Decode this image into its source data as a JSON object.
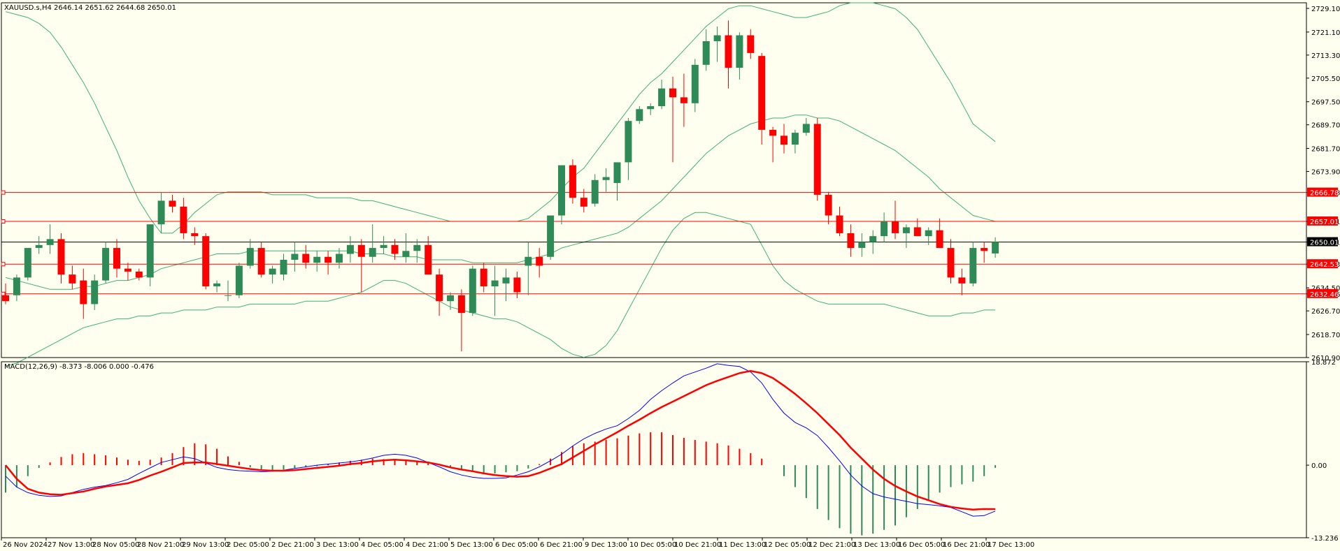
{
  "header": {
    "symbol_info": "XAUUSD.s,H4  2646.14 2651.62 2644.68 2650.01",
    "macd_info": "MACD(12,26,9) -8.373 -8.006 0.000 -0.476"
  },
  "colors": {
    "background": "#fffff0",
    "bull": "#2e8b57",
    "bear": "#ff0000",
    "bands": "#3cb371",
    "level_line": "#ff0000",
    "current_line": "#000000",
    "macd_main": "#0000ff",
    "macd_signal": "#ff0000"
  },
  "chart_data": [
    {
      "type": "candlestick",
      "symbol": "XAUUSD.s",
      "timeframe": "H4",
      "ylim": [
        2610.9,
        2731.0
      ],
      "y_ticks": [
        "2729.10",
        "2721.10",
        "2713.30",
        "2705.50",
        "2697.50",
        "2689.70",
        "2681.70",
        "2673.90",
        "2666.78",
        "2657.01",
        "2650.01",
        "2642.53",
        "2634.50",
        "2632.46",
        "2626.70",
        "2618.70",
        "2610.90"
      ],
      "horizontal_levels": [
        {
          "label": "2666.78",
          "value": 2666.78
        },
        {
          "label": "2657.01",
          "value": 2657.01
        },
        {
          "label": "2642.53",
          "value": 2642.53
        },
        {
          "label": "2632.46",
          "value": 2632.46
        }
      ],
      "current_price": {
        "label": "2650.01",
        "value": 2650.01
      },
      "x_labels": [
        "26 Nov 2024",
        "27 Nov 13:00",
        "28 Nov 05:00",
        "28 Nov 21:00",
        "29 Nov 13:00",
        "2 Dec 05:00",
        "2 Dec 21:00",
        "3 Dec 13:00",
        "4 Dec 05:00",
        "4 Dec 21:00",
        "5 Dec 13:00",
        "6 Dec 05:00",
        "6 Dec 21:00",
        "9 Dec 13:00",
        "10 Dec 05:00",
        "10 Dec 21:00",
        "11 Dec 13:00",
        "12 Dec 05:00",
        "12 Dec 21:00",
        "13 Dec 13:00",
        "16 Dec 05:00",
        "16 Dec 21:00",
        "17 Dec 13:00"
      ],
      "candles": [
        {
          "o": 2632,
          "h": 2636,
          "l": 2629,
          "c": 2630
        },
        {
          "o": 2632,
          "h": 2639,
          "l": 2630,
          "c": 2638
        },
        {
          "o": 2638,
          "h": 2648,
          "l": 2637,
          "c": 2648
        },
        {
          "o": 2648,
          "h": 2652,
          "l": 2646,
          "c": 2649
        },
        {
          "o": 2649,
          "h": 2656,
          "l": 2646,
          "c": 2651
        },
        {
          "o": 2651,
          "h": 2653,
          "l": 2636,
          "c": 2639
        },
        {
          "o": 2639,
          "h": 2642,
          "l": 2634,
          "c": 2636
        },
        {
          "o": 2637,
          "h": 2641,
          "l": 2624,
          "c": 2629
        },
        {
          "o": 2629,
          "h": 2639,
          "l": 2627,
          "c": 2637
        },
        {
          "o": 2637,
          "h": 2650,
          "l": 2636,
          "c": 2648
        },
        {
          "o": 2648,
          "h": 2651,
          "l": 2638,
          "c": 2641
        },
        {
          "o": 2641,
          "h": 2643,
          "l": 2637,
          "c": 2640
        },
        {
          "o": 2640,
          "h": 2641,
          "l": 2637,
          "c": 2638
        },
        {
          "o": 2638,
          "h": 2656,
          "l": 2635,
          "c": 2656
        },
        {
          "o": 2656,
          "h": 2667,
          "l": 2653,
          "c": 2664
        },
        {
          "o": 2664,
          "h": 2666,
          "l": 2660,
          "c": 2662
        },
        {
          "o": 2662,
          "h": 2665,
          "l": 2651,
          "c": 2653
        },
        {
          "o": 2653,
          "h": 2655,
          "l": 2649,
          "c": 2652
        },
        {
          "o": 2652,
          "h": 2653,
          "l": 2634,
          "c": 2635
        },
        {
          "o": 2635,
          "h": 2637,
          "l": 2633,
          "c": 2636
        },
        {
          "o": 2632,
          "h": 2637,
          "l": 2630,
          "c": 2632
        },
        {
          "o": 2632,
          "h": 2643,
          "l": 2631,
          "c": 2642
        },
        {
          "o": 2642,
          "h": 2651,
          "l": 2641,
          "c": 2648
        },
        {
          "o": 2648,
          "h": 2650,
          "l": 2638,
          "c": 2639
        },
        {
          "o": 2639,
          "h": 2642,
          "l": 2636,
          "c": 2641
        },
        {
          "o": 2639,
          "h": 2646,
          "l": 2637,
          "c": 2644
        },
        {
          "o": 2644,
          "h": 2650,
          "l": 2640,
          "c": 2646
        },
        {
          "o": 2646,
          "h": 2649,
          "l": 2641,
          "c": 2643
        },
        {
          "o": 2643,
          "h": 2647,
          "l": 2640,
          "c": 2645
        },
        {
          "o": 2645,
          "h": 2647,
          "l": 2639,
          "c": 2643
        },
        {
          "o": 2643,
          "h": 2648,
          "l": 2641,
          "c": 2646
        },
        {
          "o": 2646,
          "h": 2652,
          "l": 2643,
          "c": 2649
        },
        {
          "o": 2649,
          "h": 2651,
          "l": 2633,
          "c": 2645
        },
        {
          "o": 2645,
          "h": 2656,
          "l": 2643,
          "c": 2648
        },
        {
          "o": 2648,
          "h": 2652,
          "l": 2646,
          "c": 2649
        },
        {
          "o": 2649,
          "h": 2651,
          "l": 2644,
          "c": 2646
        },
        {
          "o": 2645,
          "h": 2653,
          "l": 2643,
          "c": 2647
        },
        {
          "o": 2647,
          "h": 2651,
          "l": 2643,
          "c": 2649
        },
        {
          "o": 2649,
          "h": 2652,
          "l": 2640,
          "c": 2639
        },
        {
          "o": 2639,
          "h": 2641,
          "l": 2625,
          "c": 2630
        },
        {
          "o": 2630,
          "h": 2633,
          "l": 2627,
          "c": 2632
        },
        {
          "o": 2632,
          "h": 2634,
          "l": 2613,
          "c": 2626
        },
        {
          "o": 2626,
          "h": 2642,
          "l": 2625,
          "c": 2641
        },
        {
          "o": 2641,
          "h": 2643,
          "l": 2633,
          "c": 2635
        },
        {
          "o": 2635,
          "h": 2642,
          "l": 2625,
          "c": 2637
        },
        {
          "o": 2636,
          "h": 2641,
          "l": 2630,
          "c": 2638
        },
        {
          "o": 2638,
          "h": 2640,
          "l": 2631,
          "c": 2633
        },
        {
          "o": 2642,
          "h": 2650,
          "l": 2632,
          "c": 2645
        },
        {
          "o": 2645,
          "h": 2648,
          "l": 2638,
          "c": 2642
        },
        {
          "o": 2645,
          "h": 2659,
          "l": 2644,
          "c": 2659
        },
        {
          "o": 2659,
          "h": 2676,
          "l": 2656,
          "c": 2676
        },
        {
          "o": 2676,
          "h": 2678,
          "l": 2663,
          "c": 2665
        },
        {
          "o": 2665,
          "h": 2668,
          "l": 2660,
          "c": 2662
        },
        {
          "o": 2663,
          "h": 2673,
          "l": 2662,
          "c": 2671
        },
        {
          "o": 2671,
          "h": 2675,
          "l": 2667,
          "c": 2672
        },
        {
          "o": 2670,
          "h": 2676,
          "l": 2664,
          "c": 2677
        },
        {
          "o": 2677,
          "h": 2692,
          "l": 2671,
          "c": 2691
        },
        {
          "o": 2691,
          "h": 2696,
          "l": 2690,
          "c": 2695
        },
        {
          "o": 2695,
          "h": 2697,
          "l": 2693,
          "c": 2696
        },
        {
          "o": 2696,
          "h": 2705,
          "l": 2695,
          "c": 2702
        },
        {
          "o": 2702,
          "h": 2706,
          "l": 2677,
          "c": 2699
        },
        {
          "o": 2699,
          "h": 2707,
          "l": 2689,
          "c": 2697
        },
        {
          "o": 2697,
          "h": 2712,
          "l": 2694,
          "c": 2710
        },
        {
          "o": 2710,
          "h": 2722,
          "l": 2708,
          "c": 2718
        },
        {
          "o": 2718,
          "h": 2723,
          "l": 2711,
          "c": 2720
        },
        {
          "o": 2720,
          "h": 2725,
          "l": 2702,
          "c": 2709
        },
        {
          "o": 2709,
          "h": 2721,
          "l": 2705,
          "c": 2720
        },
        {
          "o": 2720,
          "h": 2722,
          "l": 2712,
          "c": 2714
        },
        {
          "o": 2713,
          "h": 2714,
          "l": 2683,
          "c": 2688
        },
        {
          "o": 2688,
          "h": 2689,
          "l": 2677,
          "c": 2686
        },
        {
          "o": 2686,
          "h": 2690,
          "l": 2680,
          "c": 2683
        },
        {
          "o": 2683,
          "h": 2688,
          "l": 2680,
          "c": 2687
        },
        {
          "o": 2687,
          "h": 2692,
          "l": 2686,
          "c": 2690
        },
        {
          "o": 2690,
          "h": 2692,
          "l": 2664,
          "c": 2666
        },
        {
          "o": 2666,
          "h": 2667,
          "l": 2656,
          "c": 2659
        },
        {
          "o": 2659,
          "h": 2662,
          "l": 2652,
          "c": 2653
        },
        {
          "o": 2653,
          "h": 2656,
          "l": 2645,
          "c": 2648
        },
        {
          "o": 2648,
          "h": 2653,
          "l": 2645,
          "c": 2650
        },
        {
          "o": 2650,
          "h": 2654,
          "l": 2646,
          "c": 2652
        },
        {
          "o": 2652,
          "h": 2660,
          "l": 2650,
          "c": 2657
        },
        {
          "o": 2657,
          "h": 2664,
          "l": 2651,
          "c": 2653
        },
        {
          "o": 2653,
          "h": 2656,
          "l": 2648,
          "c": 2655
        },
        {
          "o": 2655,
          "h": 2658,
          "l": 2652,
          "c": 2652
        },
        {
          "o": 2652,
          "h": 2655,
          "l": 2649,
          "c": 2654
        },
        {
          "o": 2654,
          "h": 2658,
          "l": 2648,
          "c": 2648
        },
        {
          "o": 2648,
          "h": 2651,
          "l": 2636,
          "c": 2638
        },
        {
          "o": 2638,
          "h": 2641,
          "l": 2632,
          "c": 2636
        },
        {
          "o": 2636,
          "h": 2650,
          "l": 2635,
          "c": 2648
        },
        {
          "o": 2648,
          "h": 2650,
          "l": 2643,
          "c": 2647
        },
        {
          "o": 2646.14,
          "h": 2651.62,
          "l": 2644.68,
          "c": 2650.01
        }
      ],
      "bands": {
        "upper": [
          2728,
          2727,
          2726,
          2724,
          2721,
          2716,
          2710,
          2704,
          2697,
          2689,
          2681,
          2672,
          2664,
          2658,
          2653,
          2653,
          2656,
          2660,
          2663,
          2666,
          2667,
          2667,
          2667,
          2667,
          2666,
          2666,
          2666,
          2666,
          2665,
          2665,
          2665,
          2665,
          2664,
          2664,
          2663,
          2662,
          2661,
          2660,
          2659,
          2658,
          2657,
          2657,
          2657,
          2657,
          2657,
          2657,
          2657,
          2658,
          2661,
          2664,
          2668,
          2672,
          2675,
          2680,
          2685,
          2690,
          2695,
          2700,
          2704,
          2707,
          2711,
          2715,
          2719,
          2723,
          2726,
          2729,
          2730,
          2730,
          2729,
          2728,
          2727,
          2726,
          2726,
          2727,
          2728,
          2730,
          2731,
          2731,
          2731,
          2730,
          2729,
          2726,
          2722,
          2716,
          2710,
          2704,
          2697,
          2690,
          2687,
          2684
        ],
        "mid": [
          2638,
          2637,
          2636,
          2635,
          2634,
          2634,
          2634,
          2635,
          2635,
          2636,
          2637,
          2637,
          2638,
          2639,
          2641,
          2642,
          2643,
          2644,
          2645,
          2646,
          2646,
          2646,
          2647,
          2647,
          2647,
          2647,
          2647,
          2647,
          2647,
          2647,
          2647,
          2647,
          2646,
          2646,
          2646,
          2645,
          2645,
          2645,
          2644,
          2644,
          2644,
          2644,
          2643,
          2643,
          2643,
          2643,
          2643,
          2644,
          2645,
          2646,
          2648,
          2649,
          2650,
          2651,
          2652,
          2653,
          2655,
          2658,
          2661,
          2664,
          2668,
          2672,
          2676,
          2680,
          2683,
          2686,
          2688,
          2690,
          2691,
          2692,
          2692,
          2693,
          2693,
          2692,
          2692,
          2691,
          2689,
          2687,
          2685,
          2683,
          2681,
          2678,
          2675,
          2672,
          2668,
          2665,
          2662,
          2659,
          2658,
          2657
        ],
        "lower": [
          2608,
          2609,
          2611,
          2613,
          2615,
          2617,
          2619,
          2621,
          2622,
          2623,
          2624,
          2624,
          2625,
          2625,
          2626,
          2626,
          2627,
          2627,
          2627,
          2628,
          2628,
          2628,
          2629,
          2629,
          2629,
          2629,
          2629,
          2630,
          2630,
          2630,
          2631,
          2632,
          2633,
          2635,
          2637,
          2637,
          2636,
          2634,
          2632,
          2630,
          2628,
          2627,
          2626,
          2625,
          2624,
          2624,
          2623,
          2621,
          2619,
          2617,
          2614,
          2612,
          2611,
          2612,
          2615,
          2620,
          2627,
          2634,
          2641,
          2648,
          2654,
          2658,
          2660,
          2660,
          2659,
          2658,
          2657,
          2656,
          2649,
          2642,
          2637,
          2634,
          2632,
          2630,
          2629,
          2629,
          2629,
          2629,
          2629,
          2629,
          2628,
          2627,
          2626,
          2625,
          2625,
          2625,
          2626,
          2626,
          2627,
          2627
        ]
      }
    },
    {
      "type": "macd",
      "title": "MACD(12,26,9)",
      "ylim": [
        -13.236,
        18.872
      ],
      "y_ticks": [
        "18.872",
        "0.00",
        "-13.236"
      ],
      "histogram": [
        -5,
        -4,
        -2,
        -0.5,
        0.5,
        1.5,
        2.0,
        2.2,
        2.0,
        1.8,
        1.4,
        1.0,
        0.8,
        1.0,
        1.4,
        2.2,
        3.3,
        4.0,
        3.8,
        3.0,
        1.6,
        0.6,
        -0.4,
        -0.8,
        -1.0,
        -0.8,
        -0.6,
        -0.4,
        -0.2,
        0.2,
        0.5,
        0.8,
        1.0,
        1.2,
        1.1,
        1.0,
        0.8,
        0.6,
        0.4,
        0.2,
        -0.4,
        -0.8,
        -1.2,
        -1.4,
        -1.5,
        -1.3,
        -1.1,
        -0.6,
        0.2,
        1.2,
        2.4,
        3.5,
        4.0,
        4.3,
        4.6,
        4.9,
        5.4,
        5.8,
        6.0,
        6.0,
        5.5,
        5.0,
        4.6,
        4.3,
        4.0,
        3.6,
        3.0,
        2.2,
        1.2,
        0,
        -2,
        -4,
        -6,
        -8,
        -10,
        -11.5,
        -12.5,
        -12.8,
        -12.5,
        -11.8,
        -11,
        -9.5,
        -8,
        -6.5,
        -5,
        -4,
        -3.5,
        -3,
        -2,
        -0.476
      ],
      "main": [
        -2,
        -4,
        -5,
        -5.5,
        -5.7,
        -5.6,
        -5,
        -4.4,
        -4,
        -3.7,
        -3.2,
        -2.6,
        -1.5,
        -0.5,
        0.5,
        1.0,
        1.5,
        1.2,
        0.4,
        -0.4,
        -0.8,
        -1.0,
        -1.1,
        -1.2,
        -1.1,
        -0.9,
        -0.6,
        -0.3,
        0,
        0.2,
        0.4,
        0.6,
        0.9,
        1.3,
        1.8,
        2.0,
        1.8,
        1.3,
        0.5,
        -0.3,
        -1.2,
        -1.8,
        -2.2,
        -2.4,
        -2.4,
        -2.3,
        -1.8,
        -1.2,
        -0.3,
        0.8,
        2.0,
        3.5,
        4.8,
        5.8,
        6.6,
        7.2,
        8.5,
        10.0,
        12,
        13.6,
        15,
        16.3,
        17.0,
        17.7,
        18.5,
        18.2,
        18.0,
        17.0,
        15.0,
        12.0,
        9.5,
        7.8,
        6.8,
        5.4,
        3.2,
        0.8,
        -1.8,
        -3.8,
        -5.2,
        -5.8,
        -6.2,
        -6.6,
        -7.0,
        -7.2,
        -7.4,
        -7.7,
        -8.5,
        -9.3,
        -9.2,
        -8.373
      ],
      "signal": [
        0,
        -2.5,
        -4.3,
        -5,
        -5.3,
        -5.4,
        -5.1,
        -4.8,
        -4.3,
        -3.9,
        -3.6,
        -3.3,
        -2.7,
        -1.9,
        -1.2,
        -0.4,
        0.4,
        0.5,
        0.5,
        0.2,
        -0.1,
        -0.4,
        -0.7,
        -0.9,
        -1.0,
        -1.0,
        -0.9,
        -0.7,
        -0.5,
        -0.3,
        -0.1,
        0.2,
        0.4,
        0.7,
        0.9,
        1.0,
        0.9,
        0.7,
        0.5,
        0.1,
        -0.4,
        -0.8,
        -1.1,
        -1.5,
        -1.8,
        -2.0,
        -2.1,
        -2.0,
        -1.4,
        -0.6,
        0.2,
        1.4,
        2.6,
        3.8,
        4.9,
        6.0,
        7.2,
        8.3,
        9.5,
        10.6,
        11.6,
        12.6,
        13.6,
        14.6,
        15.4,
        16.1,
        16.8,
        17.2,
        16.8,
        15.9,
        14.5,
        13.0,
        11.3,
        9.5,
        7.5,
        5.5,
        3.2,
        1.2,
        -0.8,
        -2.5,
        -3.8,
        -4.8,
        -5.7,
        -6.4,
        -7.1,
        -7.6,
        -7.9,
        -8.1,
        -8.0,
        -8.006
      ]
    }
  ]
}
